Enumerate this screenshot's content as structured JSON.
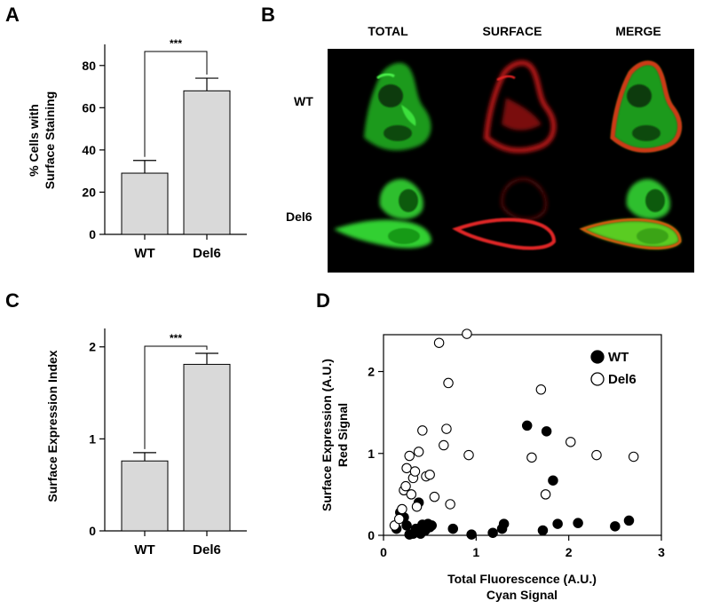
{
  "panels": {
    "a": "A",
    "b": "B",
    "c": "C",
    "d": "D"
  },
  "microscopy": {
    "columns": [
      "TOTAL",
      "SURFACE",
      "MERGE"
    ],
    "rows": [
      "WT",
      "Del6"
    ]
  },
  "colors": {
    "bar_fill": "#d9d9d9",
    "green": "#2ecc2e",
    "red": "#dd2020",
    "background": "#000000"
  },
  "chart_data": [
    {
      "panel": "A",
      "type": "bar",
      "categories": [
        "WT",
        "Del6"
      ],
      "values": [
        29,
        68
      ],
      "errors": [
        6,
        6
      ],
      "ylabel": [
        "% Cells with",
        "Surface Staining"
      ],
      "ylim": [
        0,
        90
      ],
      "yticks": [
        "0",
        "20",
        "40",
        "60",
        "80"
      ],
      "significance": "***"
    },
    {
      "panel": "C",
      "type": "bar",
      "categories": [
        "WT",
        "Del6"
      ],
      "values": [
        0.76,
        1.81
      ],
      "errors": [
        0.09,
        0.12
      ],
      "ylabel": "Surface Expression Index",
      "ylim": [
        0,
        2.2
      ],
      "yticks": [
        "0",
        "1",
        "2"
      ],
      "significance": "***"
    },
    {
      "panel": "D",
      "type": "scatter",
      "xlabel": [
        "Total Fluorescence (A.U.)",
        "Cyan Signal"
      ],
      "ylabel": [
        "Surface  Expression (A.U.)",
        "Red Signal"
      ],
      "xlim": [
        0,
        3
      ],
      "ylim": [
        0,
        2.45
      ],
      "xticks": [
        "0",
        "1",
        "2",
        "3"
      ],
      "yticks": [
        "0",
        "1",
        "2"
      ],
      "legend_position": "top-right",
      "series": [
        {
          "name": "WT",
          "marker": "filled",
          "points": [
            [
              0.14,
              0.08
            ],
            [
              0.18,
              0.28
            ],
            [
              0.22,
              0.22
            ],
            [
              0.25,
              0.12
            ],
            [
              0.28,
              0.01
            ],
            [
              0.32,
              0.02
            ],
            [
              0.35,
              0.08
            ],
            [
              0.38,
              0.4
            ],
            [
              0.4,
              0.02
            ],
            [
              0.42,
              0.13
            ],
            [
              0.45,
              0.06
            ],
            [
              0.48,
              0.14
            ],
            [
              0.5,
              0.1
            ],
            [
              0.52,
              0.12
            ],
            [
              0.75,
              0.08
            ],
            [
              0.95,
              0.01
            ],
            [
              1.18,
              0.03
            ],
            [
              1.28,
              0.08
            ],
            [
              1.3,
              0.14
            ],
            [
              1.55,
              1.34
            ],
            [
              1.72,
              0.06
            ],
            [
              1.76,
              1.27
            ],
            [
              1.83,
              0.67
            ],
            [
              1.88,
              0.14
            ],
            [
              2.1,
              0.15
            ],
            [
              2.5,
              0.11
            ],
            [
              2.65,
              0.18
            ]
          ]
        },
        {
          "name": "Del6",
          "marker": "open",
          "points": [
            [
              0.12,
              0.12
            ],
            [
              0.17,
              0.2
            ],
            [
              0.2,
              0.32
            ],
            [
              0.22,
              0.55
            ],
            [
              0.24,
              0.6
            ],
            [
              0.25,
              0.82
            ],
            [
              0.28,
              0.97
            ],
            [
              0.3,
              0.5
            ],
            [
              0.32,
              0.7
            ],
            [
              0.34,
              0.78
            ],
            [
              0.36,
              0.35
            ],
            [
              0.38,
              1.02
            ],
            [
              0.42,
              1.28
            ],
            [
              0.46,
              0.72
            ],
            [
              0.5,
              0.74
            ],
            [
              0.55,
              0.47
            ],
            [
              0.6,
              2.35
            ],
            [
              0.65,
              1.1
            ],
            [
              0.68,
              1.3
            ],
            [
              0.7,
              1.86
            ],
            [
              0.72,
              0.38
            ],
            [
              0.9,
              2.46
            ],
            [
              0.92,
              0.98
            ],
            [
              1.6,
              0.95
            ],
            [
              1.7,
              1.78
            ],
            [
              1.75,
              0.5
            ],
            [
              2.02,
              1.14
            ],
            [
              2.3,
              0.98
            ],
            [
              2.7,
              0.96
            ]
          ]
        }
      ]
    }
  ]
}
